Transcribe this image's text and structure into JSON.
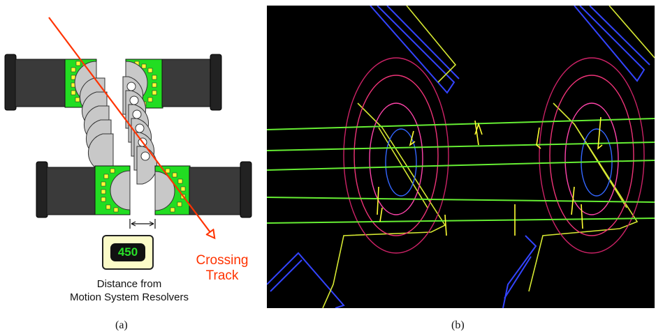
{
  "panel_a": {
    "readout_value": "450",
    "crossing_label_line1": "Crossing",
    "crossing_label_line2": "Track",
    "distance_label_line1": "Distance from",
    "distance_label_line2": "Motion System Resolvers",
    "caption": "(a)"
  },
  "panel_b": {
    "caption": "(b)"
  },
  "colors": {
    "track": "#ff3300",
    "sensor_green": "#22dd22",
    "bond_pad": "#ffff33",
    "motor_body": "#333333",
    "readout_text": "#29e029",
    "readout_bg": "#fbfbc8",
    "display_bg": "#000000"
  }
}
